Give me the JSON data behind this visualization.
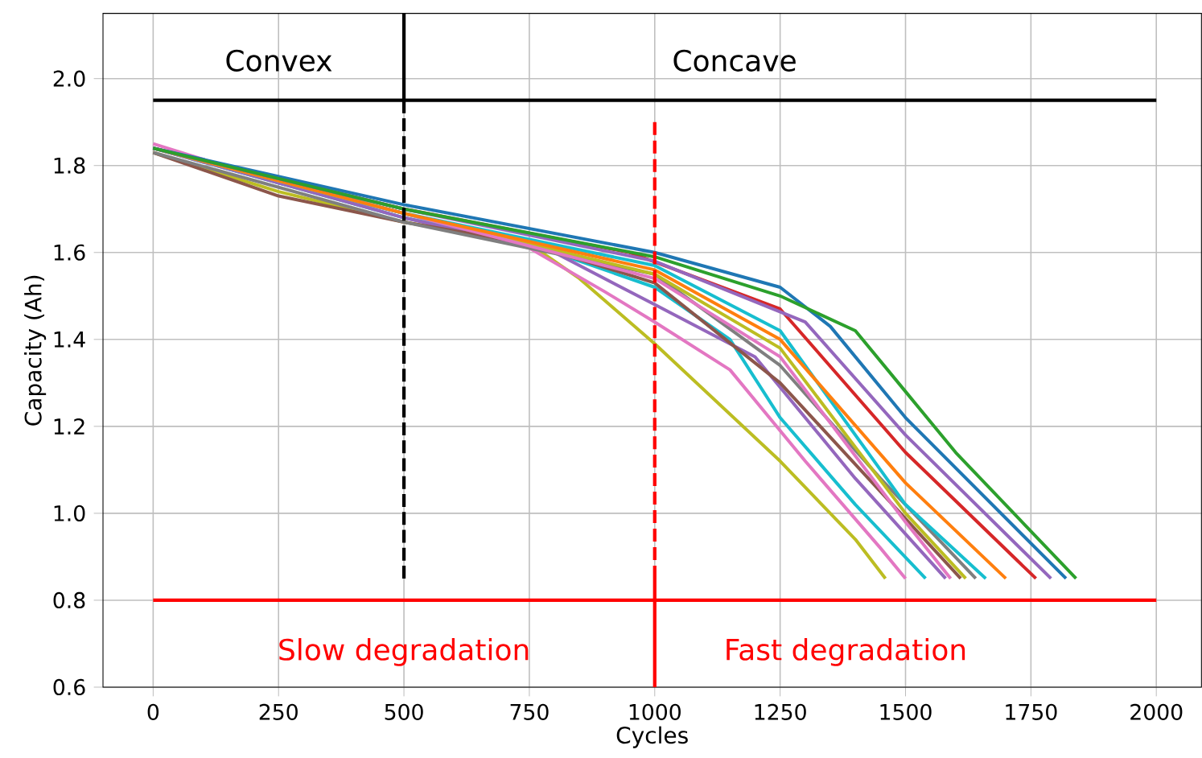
{
  "chart_data": {
    "type": "line",
    "xlabel": "Cycles",
    "ylabel": "Capacity (Ah)",
    "xlim": [
      -100,
      2090
    ],
    "ylim": [
      0.6,
      2.15
    ],
    "xticks": [
      0,
      250,
      500,
      750,
      1000,
      1250,
      1500,
      1750,
      2000
    ],
    "yticks": [
      {
        "value": 0.6,
        "label": "0.6"
      },
      {
        "value": 0.8,
        "label": "0.8"
      },
      {
        "value": 1,
        "label": "1.0"
      },
      {
        "value": 1.2,
        "label": "1.2"
      },
      {
        "value": 1.4,
        "label": "1.4"
      },
      {
        "value": 1.6,
        "label": "1.6"
      },
      {
        "value": 1.8,
        "label": "1.8"
      },
      {
        "value": 2,
        "label": "2.0"
      }
    ],
    "grid": true,
    "annotations": [
      "Convex",
      "Concave",
      "Slow degradation",
      "Fast degradation"
    ],
    "series": [
      {
        "color": "#bcbd22",
        "x": [
          0,
          250,
          500,
          750,
          850,
          1000,
          1250,
          1400,
          1460
        ],
        "values": [
          1.83,
          1.74,
          1.67,
          1.62,
          1.54,
          1.39,
          1.12,
          0.94,
          0.85
        ]
      },
      {
        "color": "#e377c2",
        "x": [
          0,
          250,
          500,
          750,
          900,
          1000,
          1150,
          1300,
          1450,
          1500
        ],
        "values": [
          1.85,
          1.76,
          1.69,
          1.61,
          1.51,
          1.44,
          1.33,
          1.12,
          0.92,
          0.85
        ]
      },
      {
        "color": "#17becf",
        "x": [
          0,
          500,
          750,
          1000,
          1150,
          1250,
          1400,
          1540
        ],
        "values": [
          1.84,
          1.68,
          1.62,
          1.52,
          1.4,
          1.22,
          1.02,
          0.85
        ]
      },
      {
        "color": "#9467bd",
        "x": [
          0,
          500,
          800,
          1000,
          1200,
          1400,
          1580
        ],
        "values": [
          1.84,
          1.68,
          1.6,
          1.48,
          1.36,
          1.08,
          0.85
        ]
      },
      {
        "color": "#8c564b",
        "x": [
          0,
          250,
          500,
          750,
          1000,
          1250,
          1450,
          1610
        ],
        "values": [
          1.83,
          1.73,
          1.67,
          1.62,
          1.53,
          1.3,
          1.05,
          0.85
        ]
      },
      {
        "color": "#7f7f7f",
        "x": [
          0,
          500,
          1000,
          1250,
          1450,
          1640
        ],
        "values": [
          1.83,
          1.67,
          1.55,
          1.34,
          1.08,
          0.85
        ]
      },
      {
        "color": "#bcbd22",
        "x": [
          0,
          500,
          1000,
          1250,
          1500,
          1620
        ],
        "values": [
          1.84,
          1.69,
          1.55,
          1.38,
          1.0,
          0.85
        ]
      },
      {
        "color": "#e377c2",
        "x": [
          0,
          500,
          1000,
          1250,
          1500,
          1590
        ],
        "values": [
          1.84,
          1.69,
          1.54,
          1.36,
          0.98,
          0.85
        ]
      },
      {
        "color": "#17becf",
        "x": [
          0,
          500,
          1000,
          1250,
          1500,
          1660
        ],
        "values": [
          1.84,
          1.69,
          1.57,
          1.42,
          1.02,
          0.85
        ]
      },
      {
        "color": "#ff7f0e",
        "x": [
          0,
          500,
          1000,
          1250,
          1500,
          1700
        ],
        "values": [
          1.84,
          1.69,
          1.56,
          1.4,
          1.07,
          0.85
        ]
      },
      {
        "color": "#d62728",
        "x": [
          0,
          500,
          950,
          1250,
          1500,
          1760
        ],
        "values": [
          1.84,
          1.7,
          1.6,
          1.47,
          1.14,
          0.85
        ]
      },
      {
        "color": "#9467bd",
        "x": [
          0,
          500,
          1000,
          1300,
          1500,
          1790
        ],
        "values": [
          1.84,
          1.7,
          1.58,
          1.44,
          1.18,
          0.85
        ]
      },
      {
        "color": "#1f77b4",
        "x": [
          0,
          500,
          1000,
          1250,
          1350,
          1500,
          1820
        ],
        "values": [
          1.84,
          1.71,
          1.6,
          1.52,
          1.43,
          1.22,
          0.85
        ]
      },
      {
        "color": "#2ca02c",
        "x": [
          0,
          500,
          1000,
          1250,
          1400,
          1500,
          1600,
          1840
        ],
        "values": [
          1.84,
          1.7,
          1.59,
          1.5,
          1.42,
          1.28,
          1.14,
          0.85
        ]
      },
      {
        "color": "#000000",
        "line_style": "solid",
        "x": [
          0,
          2000
        ],
        "values": [
          1.95,
          1.95
        ]
      },
      {
        "color": "#000000",
        "line_style": "solid",
        "x": [
          500,
          500
        ],
        "values": [
          1.95,
          2.15
        ]
      },
      {
        "color": "#000000",
        "line_style": "dashed",
        "x": [
          500,
          500
        ],
        "values": [
          0.85,
          1.95
        ]
      },
      {
        "color": "#ff0000",
        "line_style": "dashed",
        "x": [
          1000,
          1000
        ],
        "values": [
          0.85,
          1.9
        ]
      },
      {
        "color": "#ff0000",
        "line_style": "solid",
        "x": [
          0,
          2000
        ],
        "values": [
          0.8,
          0.8
        ]
      },
      {
        "color": "#ff0000",
        "line_style": "solid",
        "x": [
          1000,
          1000
        ],
        "values": [
          0.6,
          0.85
        ]
      }
    ]
  }
}
